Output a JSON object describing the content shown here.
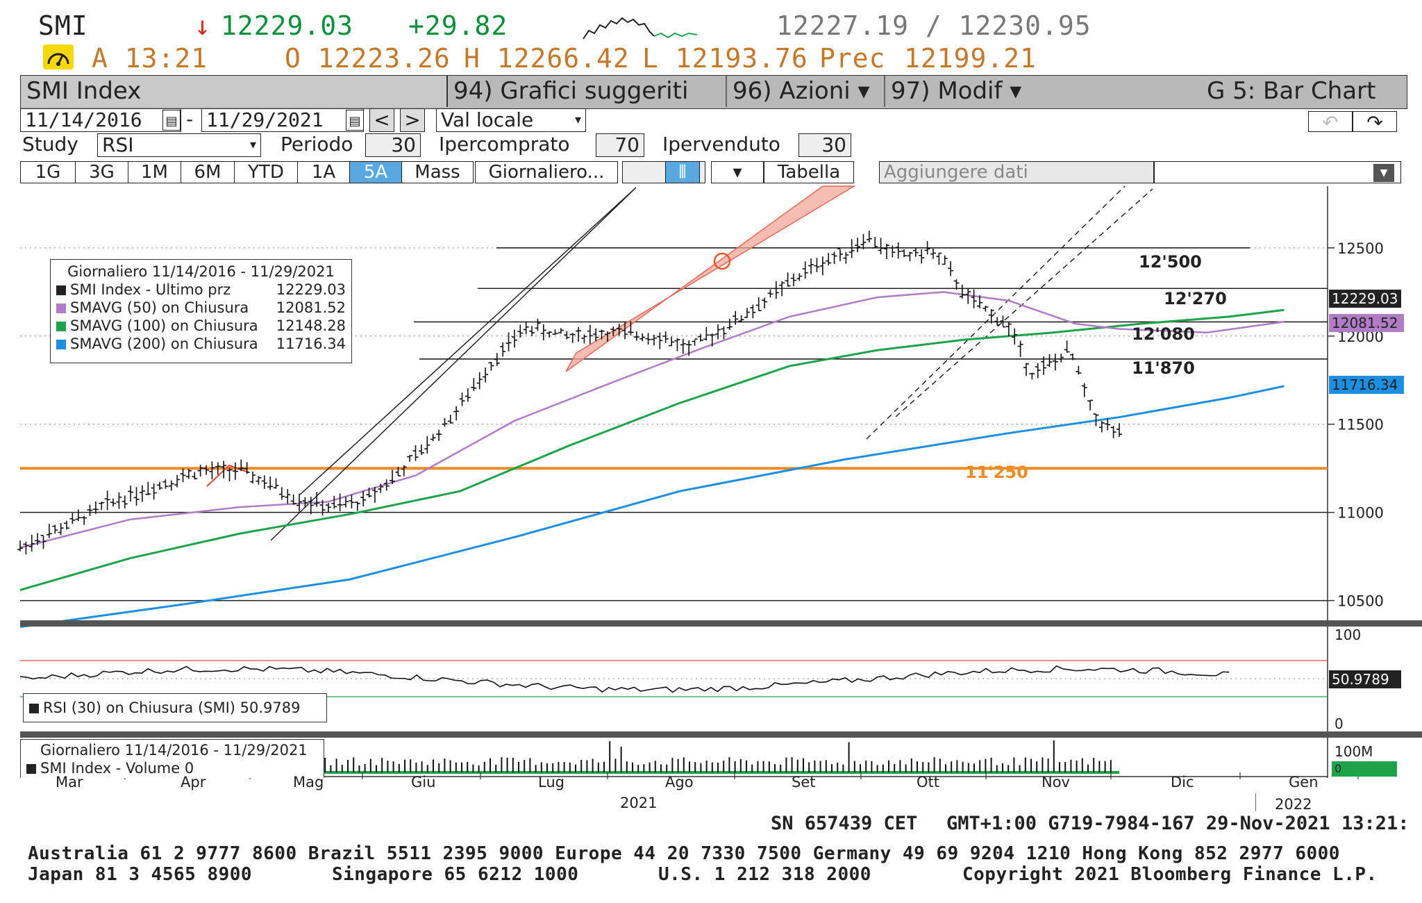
{
  "header": {
    "ticker": "SMI",
    "last_arrow": "↓",
    "last": "12229.03",
    "change": "+29.82",
    "bid_ask": "12227.19 / 12230.95",
    "time_label": "A 13:21",
    "open": "O 12223.26",
    "high": "H 12266.42",
    "low": "L 12193.76",
    "prev_label": "Prec",
    "prev": "12199.21"
  },
  "toolbar": {
    "security": "SMI Index",
    "suggested": "94) Grafici suggeriti",
    "actions": "96) Azioni ▾",
    "edit": "97) Modif ▾",
    "chart_name": "G 5: Bar Chart",
    "date_from": "11/14/2016",
    "date_sep": "-",
    "date_to": "11/29/2021",
    "currency": "Val locale",
    "study_label": "Study",
    "study_value": "RSI",
    "period_label": "Periodo",
    "period_value": "30",
    "overbought_label": "Ipercomprato",
    "overbought_value": "70",
    "oversold_label": "Ipervenduto",
    "oversold_value": "30",
    "ranges": [
      "1G",
      "3G",
      "1M",
      "6M",
      "YTD",
      "1A",
      "5A",
      "Mass"
    ],
    "active_range": "5A",
    "frequency": "Giornaliero...",
    "table": "Tabella",
    "add_data": "Aggiungere dati"
  },
  "chart_data": {
    "type": "bar",
    "legend": {
      "title": "Giornaliero 11/14/2016 - 11/29/2021",
      "entries": [
        {
          "name": "SMI Index - Ultimo prz",
          "value": "12229.03",
          "color": "#222222"
        },
        {
          "name": "SMAVG (50) on Chiusura",
          "value": "12081.52",
          "color": "#b07cc6"
        },
        {
          "name": "SMAVG (100) on Chiusura",
          "value": "12148.28",
          "color": "#1fa34a"
        },
        {
          "name": "SMAVG (200) on Chiusura",
          "value": "11716.34",
          "color": "#1e8fe0"
        }
      ]
    },
    "yaxis": {
      "ticks": [
        10500,
        11000,
        11500,
        12000,
        12500
      ],
      "ylim": [
        10400,
        12850
      ]
    },
    "xaxis": {
      "months": [
        "Mar",
        "Apr",
        "Mag",
        "Giu",
        "Lug",
        "Ago",
        "Set",
        "Ott",
        "Nov",
        "Dic",
        "Gen"
      ],
      "years": [
        "2021",
        "2022"
      ]
    },
    "price_path": [
      [
        0,
        10800
      ],
      [
        0.04,
        10920
      ],
      [
        0.08,
        11050
      ],
      [
        0.12,
        11140
      ],
      [
        0.16,
        11230
      ],
      [
        0.2,
        11240
      ],
      [
        0.22,
        11180
      ],
      [
        0.25,
        11080
      ],
      [
        0.28,
        11030
      ],
      [
        0.31,
        11060
      ],
      [
        0.34,
        11200
      ],
      [
        0.37,
        11380
      ],
      [
        0.4,
        11600
      ],
      [
        0.43,
        11860
      ],
      [
        0.46,
        12050
      ],
      [
        0.5,
        12000
      ],
      [
        0.54,
        12020
      ],
      [
        0.58,
        12000
      ],
      [
        0.61,
        11930
      ],
      [
        0.63,
        12010
      ],
      [
        0.66,
        12120
      ],
      [
        0.69,
        12260
      ],
      [
        0.72,
        12390
      ],
      [
        0.75,
        12470
      ],
      [
        0.77,
        12560
      ],
      [
        0.79,
        12480
      ],
      [
        0.81,
        12460
      ],
      [
        0.83,
        12480
      ],
      [
        0.84,
        12420
      ],
      [
        0.86,
        12230
      ],
      [
        0.88,
        12140
      ],
      [
        0.9,
        12050
      ],
      [
        0.92,
        11790
      ],
      [
        0.94,
        11850
      ],
      [
        0.955,
        11920
      ],
      [
        0.965,
        11760
      ],
      [
        0.975,
        11570
      ],
      [
        0.985,
        11500
      ],
      [
        0.995,
        11460
      ]
    ],
    "horizontal_levels": [
      {
        "label": "12'500",
        "value": 12500,
        "color": "#222222"
      },
      {
        "label": "12'270",
        "value": 12270,
        "color": "#222222"
      },
      {
        "label": "12'080",
        "value": 12080,
        "color": "#222222"
      },
      {
        "label": "11'870",
        "value": 11870,
        "color": "#222222"
      },
      {
        "label": "11'250",
        "value": 11250,
        "color": "#f08a24"
      }
    ],
    "last_price_label": "12229.03",
    "sma50_label": "12081.52",
    "sma200_label": "11716.34",
    "rsi": {
      "legend": "RSI (30) on Chiusura (SMI) 50.9789",
      "value_label": "50.9789",
      "ticks": [
        0,
        100
      ],
      "overbought": 70,
      "oversold": 30
    },
    "volume": {
      "legend_title": "Giornaliero 11/14/2016 - 11/29/2021",
      "legend_entry": "SMI Index - Volume 0",
      "tick_label": "100M",
      "zero_label": "0"
    }
  },
  "status": {
    "session": "SN 657439 CET",
    "gmt": "GMT+1:00 G719-7984-167 29-Nov-2021 13:21:"
  },
  "footer": {
    "line1": "Australia 61 2 9777 8600 Brazil 5511 2395 9000 Europe 44 20 7330 7500 Germany 49 69 9204 1210 Hong Kong 852 2977 6000",
    "line2a": "Japan 81 3 4565 8900",
    "line2b": "Singapore 65 6212 1000",
    "line2c": "U.S. 1 212 318 2000",
    "line2d": "Copyright 2021 Bloomberg Finance L.P."
  }
}
